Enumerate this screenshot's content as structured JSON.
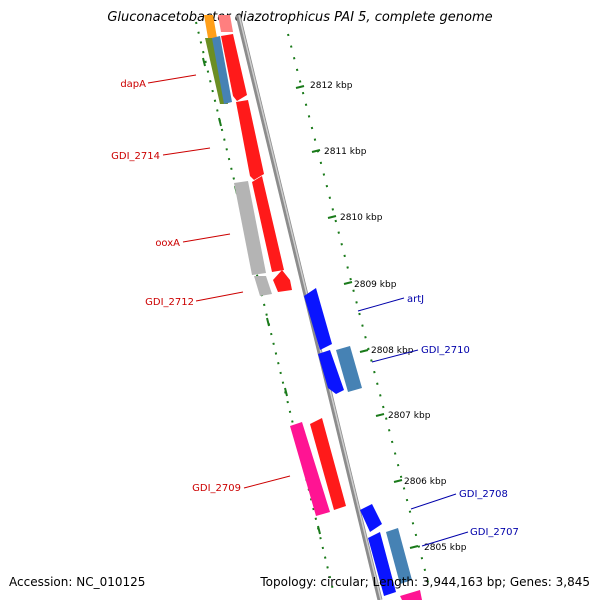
{
  "title": "Gluconacetobacter diazotrophicus PAI 5, complete genome",
  "footer": {
    "accession": "Accession: NC_010125",
    "summary": "Topology: circular; Length: 3,944,163 bp; Genes: 3,845"
  },
  "colors": {
    "backbone": "#8c8c8c",
    "tick": "#1a7a1a",
    "label_red": "#cc0000",
    "label_blue": "#0000aa",
    "gene_red": "#ff1a1a",
    "gene_blue": "#0a14ff",
    "gene_steel": "#4682b4",
    "gene_gray": "#b4b4b4",
    "gene_olive": "#6b8e23",
    "gene_pink": "#ff1493",
    "gene_orange": "#ff9f1a",
    "gene_salmon": "#ff7f7f"
  },
  "kbp_ticks": [
    "2812 kbp",
    "2811 kbp",
    "2810 kbp",
    "2809 kbp",
    "2808 kbp",
    "2807 kbp",
    "2806 kbp",
    "2805 kbp"
  ],
  "gene_labels": [
    {
      "text": "dapA",
      "side": "left"
    },
    {
      "text": "GDI_2714",
      "side": "left"
    },
    {
      "text": "ooxA",
      "side": "left"
    },
    {
      "text": "GDI_2712",
      "side": "left"
    },
    {
      "text": "GDI_2709",
      "side": "left"
    },
    {
      "text": "artJ",
      "side": "right"
    },
    {
      "text": "GDI_2710",
      "side": "right"
    },
    {
      "text": "GDI_2708",
      "side": "right"
    },
    {
      "text": "GDI_2707",
      "side": "right"
    }
  ]
}
